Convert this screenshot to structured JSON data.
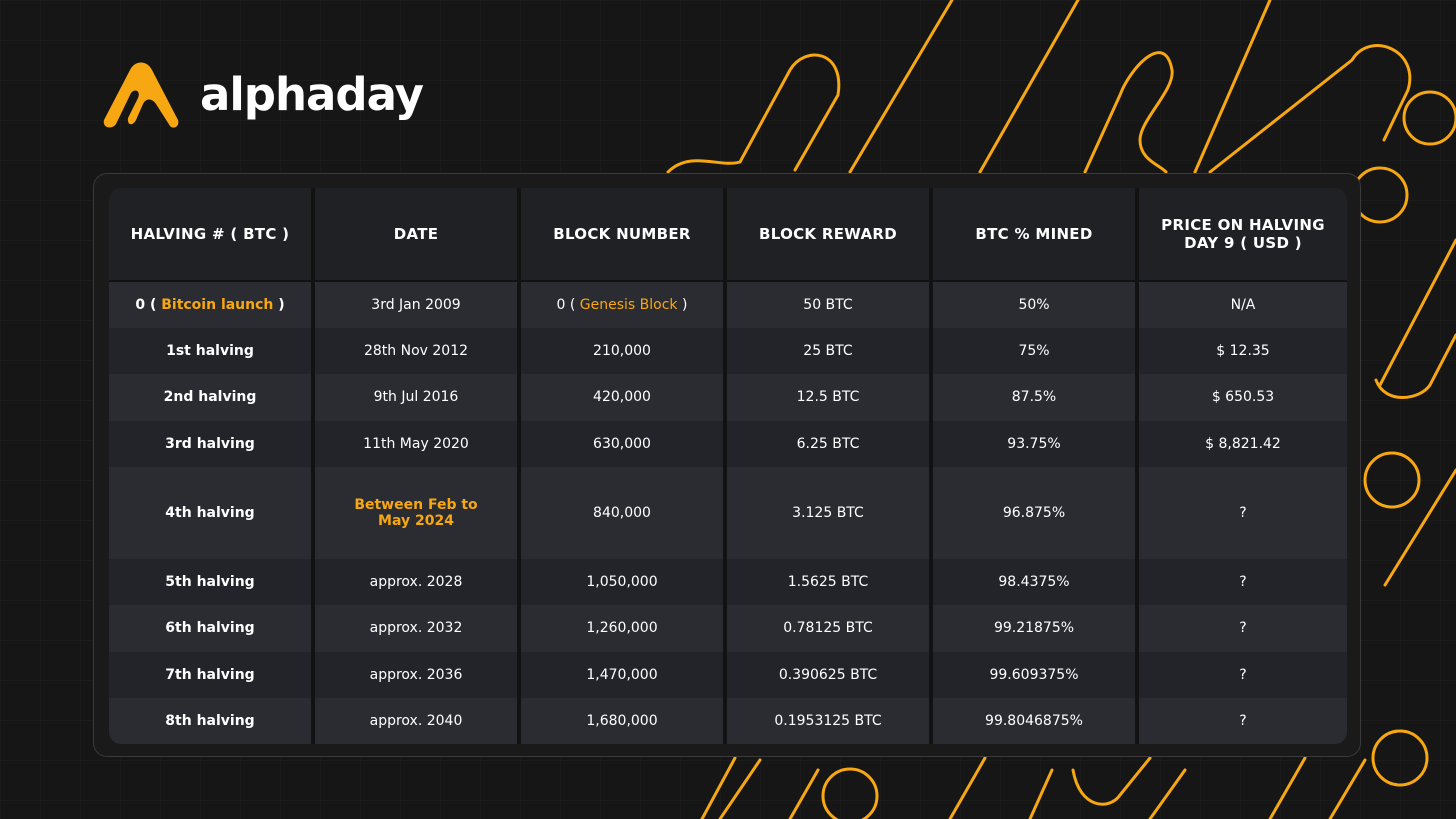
{
  "brand": {
    "name": "alphaday",
    "accent": "#f7a711"
  },
  "table": {
    "headers": [
      "HALVING # ( BTC )",
      "DATE",
      "BLOCK NUMBER",
      "BLOCK REWARD",
      "BTC % MINED",
      "PRICE ON HALVING DAY 9 ( USD )"
    ],
    "rows": [
      {
        "halving": "0 (",
        "halving_highlight": "Bitcoin launch",
        "halving_suffix": ")",
        "date": "3rd Jan 2009",
        "block": "0 (",
        "block_highlight": "Genesis Block",
        "block_suffix": ")",
        "reward": "50 BTC",
        "mined": "50%",
        "price": "N/A"
      },
      {
        "halving": "1st halving",
        "date": "28th Nov 2012",
        "block": "210,000",
        "reward": "25 BTC",
        "mined": "75%",
        "price": "$ 12.35"
      },
      {
        "halving": "2nd halving",
        "date": "9th Jul 2016",
        "block": "420,000",
        "reward": "12.5 BTC",
        "mined": "87.5%",
        "price": "$ 650.53"
      },
      {
        "halving": "3rd halving",
        "date": "11th May 2020",
        "block": "630,000",
        "reward": "6.25 BTC",
        "mined": "93.75%",
        "price": "$ 8,821.42"
      },
      {
        "halving": "4th halving",
        "date": "Between Feb to May 2024",
        "block": "840,000",
        "reward": "3.125 BTC",
        "mined": "96.875%",
        "price": "?"
      },
      {
        "halving": "5th halving",
        "date": "approx. 2028",
        "block": "1,050,000",
        "reward": "1.5625 BTC",
        "mined": "98.4375%",
        "price": "?"
      },
      {
        "halving": "6th halving",
        "date": "approx. 2032",
        "block": "1,260,000",
        "reward": "0.78125 BTC",
        "mined": "99.21875%",
        "price": "?"
      },
      {
        "halving": "7th halving",
        "date": "approx. 2036",
        "block": "1,470,000",
        "reward": "0.390625 BTC",
        "mined": "99.609375%",
        "price": "?"
      },
      {
        "halving": "8th halving",
        "date": "approx. 2040",
        "block": "1,680,000",
        "reward": "0.1953125 BTC",
        "mined": "99.8046875%",
        "price": "?"
      }
    ]
  }
}
